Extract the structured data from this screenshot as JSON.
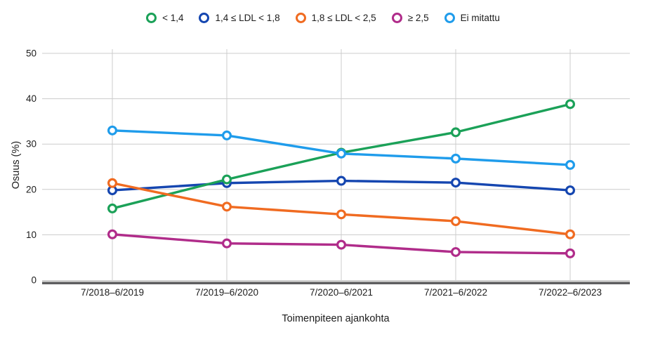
{
  "chart_data": {
    "type": "line",
    "title": "",
    "categories": [
      "7/2018–6/2019",
      "7/2019–6/2020",
      "7/2020–6/2021",
      "7/2021–6/2022",
      "7/2022–6/2023"
    ],
    "series": [
      {
        "name": "< 1,4",
        "color": "#1ba158",
        "values": [
          15.8,
          22.2,
          28.1,
          32.6,
          38.8
        ]
      },
      {
        "name": "1,4 ≤ LDL < 1,8",
        "color": "#1546b0",
        "values": [
          19.8,
          21.4,
          21.9,
          21.5,
          19.8
        ]
      },
      {
        "name": "1,8 ≤ LDL < 2,5",
        "color": "#f06b21",
        "values": [
          21.4,
          16.2,
          14.5,
          13.0,
          10.1
        ]
      },
      {
        "name": "≥ 2,5",
        "color": "#b02c8a",
        "values": [
          10.1,
          8.1,
          7.8,
          6.2,
          5.9
        ]
      },
      {
        "name": "Ei mitattu",
        "color": "#1f9ceb",
        "values": [
          33.0,
          31.9,
          27.9,
          26.8,
          25.4
        ]
      }
    ],
    "xlabel": "Toimenpiteen ajankohta",
    "ylabel": "Osuus (%)",
    "ylim": [
      0,
      50
    ],
    "yticks": [
      0,
      10,
      20,
      30,
      40,
      50
    ],
    "grid": true,
    "legend_position": "top",
    "marker_style": "open-circle"
  },
  "colors": {
    "gridline": "#cccccc",
    "axis_line_dark": "#58585a",
    "axis_line_light": "#b5b5b5",
    "background": "#ffffff",
    "text": "#1c1c1c"
  }
}
